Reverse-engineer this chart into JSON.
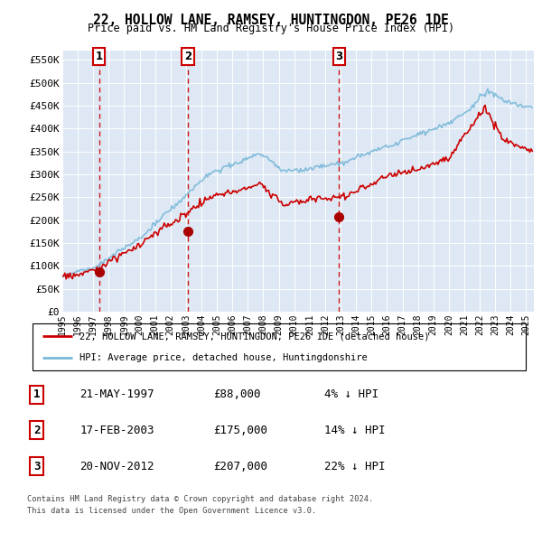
{
  "title": "22, HOLLOW LANE, RAMSEY, HUNTINGDON, PE26 1DE",
  "subtitle": "Price paid vs. HM Land Registry's House Price Index (HPI)",
  "legend_line1": "22, HOLLOW LANE, RAMSEY, HUNTINGDON, PE26 1DE (detached house)",
  "legend_line2": "HPI: Average price, detached house, Huntingdonshire",
  "footer1": "Contains HM Land Registry data © Crown copyright and database right 2024.",
  "footer2": "This data is licensed under the Open Government Licence v3.0.",
  "transactions": [
    {
      "num": 1,
      "date": "21-MAY-1997",
      "price": 88000,
      "pct": "4%",
      "dir": "↓"
    },
    {
      "num": 2,
      "date": "17-FEB-2003",
      "price": 175000,
      "pct": "14%",
      "dir": "↓"
    },
    {
      "num": 3,
      "date": "20-NOV-2012",
      "price": 207000,
      "pct": "22%",
      "dir": "↓"
    }
  ],
  "sale_dates_year": [
    1997.38,
    2003.12,
    2012.89
  ],
  "sale_prices": [
    88000,
    175000,
    207000
  ],
  "hpi_color": "#7ab8d9",
  "price_color": "#cc0000",
  "marker_color": "#aa0000",
  "vline_color": "#cc0000",
  "bg_color": "#dde8f4",
  "grid_color": "#ffffff",
  "ylim": [
    0,
    570000
  ],
  "xlim_start": 1995.0,
  "xlim_end": 2025.5,
  "yticks": [
    0,
    50000,
    100000,
    150000,
    200000,
    250000,
    300000,
    350000,
    400000,
    450000,
    500000,
    550000
  ],
  "ytick_labels": [
    "£0",
    "£50K",
    "£100K",
    "£150K",
    "£200K",
    "£250K",
    "£300K",
    "£350K",
    "£400K",
    "£450K",
    "£500K",
    "£550K"
  ],
  "xticks": [
    1995,
    1996,
    1997,
    1998,
    1999,
    2000,
    2001,
    2002,
    2003,
    2004,
    2005,
    2006,
    2007,
    2008,
    2009,
    2010,
    2011,
    2012,
    2013,
    2014,
    2015,
    2016,
    2017,
    2018,
    2019,
    2020,
    2021,
    2022,
    2023,
    2024,
    2025
  ]
}
